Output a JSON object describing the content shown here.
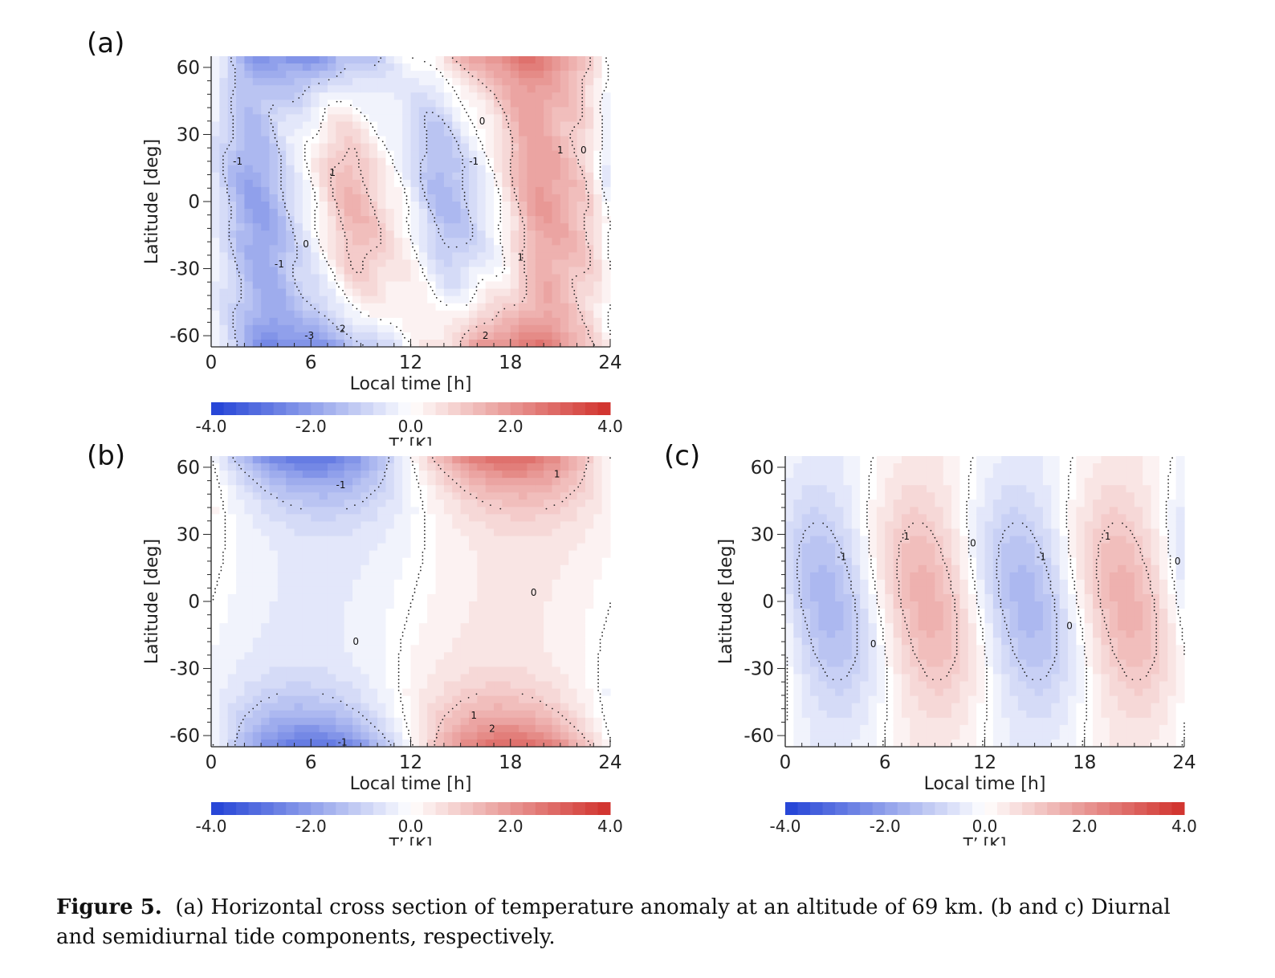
{
  "figure": {
    "panels": [
      {
        "label": "(a)"
      },
      {
        "label": "(b)"
      },
      {
        "label": "(c)"
      }
    ],
    "caption": {
      "bold": "Figure 5.",
      "text": "(a) Horizontal cross section of temperature anomaly at an altitude of 69 km. (b and c) Diurnal and semidiurnal tide components, respectively."
    }
  },
  "chart_data": [
    {
      "id": "a",
      "type": "heatmap",
      "xlabel": "Local time [h]",
      "ylabel": "Latitude [deg]",
      "xlim": [
        0,
        24
      ],
      "ylim": [
        -65,
        65
      ],
      "xticks": [
        "0",
        "6",
        "12",
        "18",
        "24"
      ],
      "yticks": [
        "60",
        "30",
        "0",
        "-30",
        "-60"
      ],
      "colorbar": {
        "label": "T’ [K]",
        "range": [
          -4.0,
          4.0
        ],
        "ticks": [
          "-4.0",
          "-2.0",
          "0.0",
          "2.0",
          "4.0"
        ],
        "colors": [
          "#2141d6",
          "#ffffff",
          "#d1302a"
        ]
      },
      "structure": "irregular semidiurnal-like bands with strong polar anomalies",
      "contour_labels": [
        {
          "text": "-1",
          "x": 1.6,
          "y": 18
        },
        {
          "text": "1",
          "x": 7.3,
          "y": 13
        },
        {
          "text": "0",
          "x": 16.3,
          "y": 36
        },
        {
          "text": "-1",
          "x": 15.8,
          "y": 18
        },
        {
          "text": "1",
          "x": 21.0,
          "y": 23
        },
        {
          "text": "0",
          "x": 22.4,
          "y": 23
        },
        {
          "text": "0",
          "x": 5.7,
          "y": -19
        },
        {
          "text": "-1",
          "x": 4.1,
          "y": -28
        },
        {
          "text": "1",
          "x": 18.6,
          "y": -25
        },
        {
          "text": "-2",
          "x": 7.8,
          "y": -57
        },
        {
          "text": "-3",
          "x": 5.9,
          "y": -60
        },
        {
          "text": "2",
          "x": 16.5,
          "y": -60
        }
      ]
    },
    {
      "id": "b",
      "type": "heatmap",
      "xlabel": "Local time [h]",
      "ylabel": "Latitude [deg]",
      "xlim": [
        0,
        24
      ],
      "ylim": [
        -65,
        65
      ],
      "xticks": [
        "0",
        "6",
        "12",
        "18",
        "24"
      ],
      "yticks": [
        "60",
        "30",
        "0",
        "-30",
        "-60"
      ],
      "colorbar": {
        "label": "T’ [K]",
        "range": [
          -4.0,
          4.0
        ],
        "ticks": [
          "-4.0",
          "-2.0",
          "0.0",
          "2.0",
          "4.0"
        ],
        "colors": [
          "#2141d6",
          "#ffffff",
          "#d1302a"
        ]
      },
      "structure": "diurnal tide: negative near 3-6 h, positive near 15-18 h, strongest at high latitudes",
      "contour_labels": [
        {
          "text": "-1",
          "x": 7.8,
          "y": 52
        },
        {
          "text": "1",
          "x": 20.8,
          "y": 57
        },
        {
          "text": "0",
          "x": 19.4,
          "y": 4
        },
        {
          "text": "0",
          "x": 8.7,
          "y": -18
        },
        {
          "text": "1",
          "x": 15.8,
          "y": -51
        },
        {
          "text": "2",
          "x": 16.9,
          "y": -57
        },
        {
          "text": "-1",
          "x": 7.9,
          "y": -63
        }
      ]
    },
    {
      "id": "c",
      "type": "heatmap",
      "xlabel": "Local time [h]",
      "ylabel": "Latitude [deg]",
      "xlim": [
        0,
        24
      ],
      "ylim": [
        -65,
        65
      ],
      "xticks": [
        "0",
        "6",
        "12",
        "18",
        "24"
      ],
      "yticks": [
        "60",
        "30",
        "0",
        "-30",
        "-60"
      ],
      "colorbar": {
        "label": "T’ [K]",
        "range": [
          -4.0,
          4.0
        ],
        "ticks": [
          "-4.0",
          "-2.0",
          "0.0",
          "2.0",
          "4.0"
        ],
        "colors": [
          "#2141d6",
          "#ffffff",
          "#d1302a"
        ]
      },
      "structure": "semidiurnal tide: negative near 2.5 h and 14.5 h, positive near 8.5 h and 20.5 h",
      "contour_labels": [
        {
          "text": "-1",
          "x": 3.4,
          "y": 20
        },
        {
          "text": "1",
          "x": 7.3,
          "y": 29
        },
        {
          "text": "0",
          "x": 11.3,
          "y": 26
        },
        {
          "text": "-1",
          "x": 15.4,
          "y": 20
        },
        {
          "text": "1",
          "x": 19.4,
          "y": 29
        },
        {
          "text": "0",
          "x": 23.6,
          "y": 18
        },
        {
          "text": "0",
          "x": 5.3,
          "y": -19
        },
        {
          "text": "0",
          "x": 17.1,
          "y": -11
        }
      ]
    }
  ]
}
